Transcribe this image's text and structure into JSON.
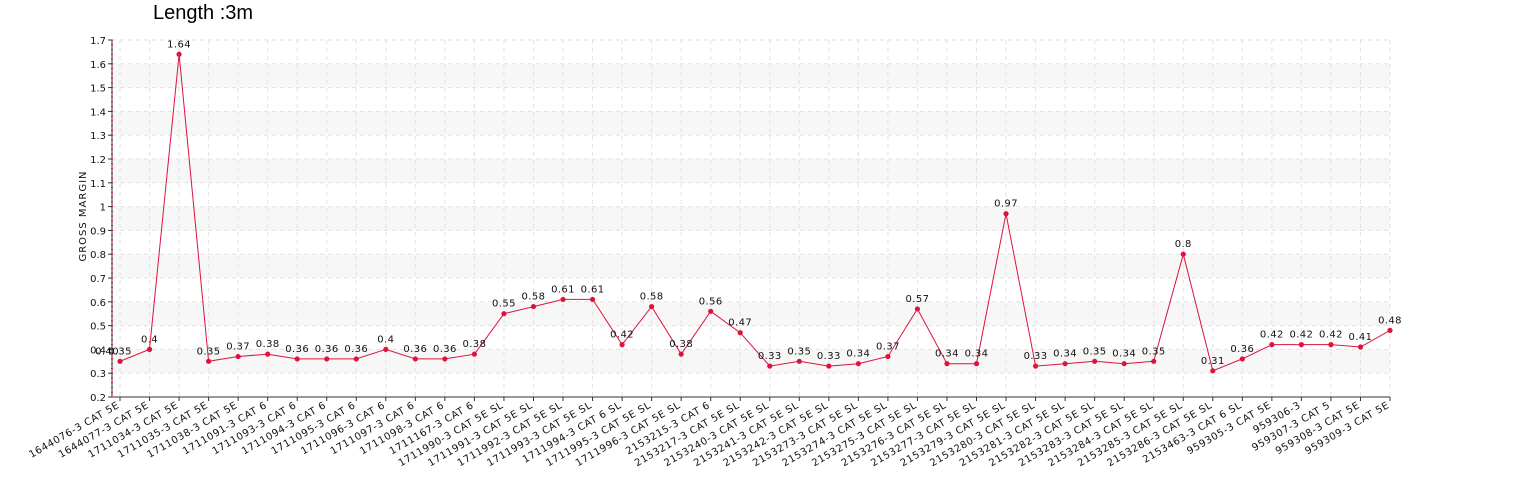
{
  "chart_data": {
    "type": "line",
    "title": "Length :3m",
    "xlabel": "",
    "ylabel": "GROSS MARGIN",
    "ylim": [
      0.2,
      1.7
    ],
    "yticks": [
      "0.2",
      "0.3",
      "0.4",
      "0.5",
      "0.6",
      "0.7",
      "0.8",
      "0.9",
      "1",
      "1.1",
      "1.2",
      "1.3",
      "1.4",
      "1.5",
      "1.6",
      "1.7"
    ],
    "grid": true,
    "categories": [
      "1644076-3 CAT 5E",
      "1644077-3 CAT 5E",
      "1711034-3 CAT 5E",
      "1711035-3 CAT 5E",
      "1711038-3 CAT 5E",
      "1711091-3 CAT 6",
      "1711093-3 CAT 6",
      "1711094-3 CAT 6",
      "1711095-3 CAT 6",
      "1711096-3 CAT 6",
      "1711097-3 CAT 6",
      "1711098-3 CAT 6",
      "1711167-3 CAT 6",
      "1711990-3 CAT 5E SL",
      "1711991-3 CAT 5E SL",
      "1711992-3 CAT 5E SL",
      "1711993-3 CAT 5E SL",
      "1711994-3 CAT 6 SL",
      "1711995-3 CAT 5E SL",
      "1711996-3 CAT 5E SL",
      "2153215-3 CAT 6",
      "2153217-3 CAT 5E SL",
      "2153240-3 CAT 5E SL",
      "2153241-3 CAT 5E SL",
      "2153242-3 CAT 5E SL",
      "2153273-3 CAT 5E SL",
      "2153274-3 CAT 5E SL",
      "2153275-3 CAT 5E SL",
      "2153276-3 CAT 5E SL",
      "2153277-3 CAT 5E SL",
      "2153279-3 CAT 5E SL",
      "2153280-3 CAT 5E SL",
      "2153281-3 CAT 5E SL",
      "2153282-3 CAT 5E SL",
      "2153283-3 CAT 5E SL",
      "2153284-3 CAT 5E SL",
      "2153285-3 CAT 5E SL",
      "2153286-3 CAT 5E SL",
      "2153463-3 CAT 6 SL",
      "959305-3 CAT 5E",
      "959306-3",
      "959307-3 CAT 5",
      "959308-3 CAT 5E",
      "959309-3 CAT 5E"
    ],
    "series": [
      {
        "name": "",
        "values": [
          0.35,
          0.4,
          1.64,
          0.35,
          0.37,
          0.38,
          0.36,
          0.36,
          0.36,
          0.4,
          0.36,
          0.36,
          0.38,
          0.55,
          0.58,
          0.61,
          0.61,
          0.42,
          0.58,
          0.38,
          0.56,
          0.47,
          0.33,
          0.35,
          0.33,
          0.34,
          0.37,
          0.57,
          0.34,
          0.34,
          0.97,
          0.33,
          0.34,
          0.35,
          0.34,
          0.35,
          0.8,
          0.31,
          0.36,
          0.42,
          0.42,
          0.42,
          0.41,
          0.48
        ],
        "color": "#dc143c"
      }
    ],
    "annotations": [
      "0.40"
    ]
  }
}
